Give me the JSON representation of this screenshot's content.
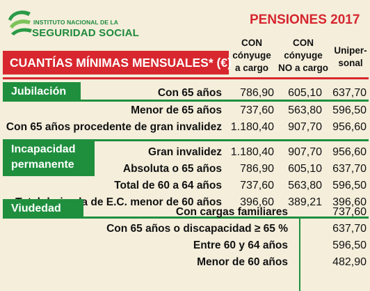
{
  "institution": {
    "top_line": "INSTITUTO NACIONAL DE LA",
    "name": "SEGURIDAD SOCIAL",
    "logo_icon": "seguridad-social-logo-icon"
  },
  "title": "PENSIONES 2017",
  "banner": "CUANTÍAS MÍNIMAS MENSUALES* (€)",
  "columns": [
    {
      "lines": [
        "CON",
        "cónyuge",
        "a cargo"
      ]
    },
    {
      "lines": [
        "CON",
        "cónyuge",
        "NO a cargo"
      ]
    },
    {
      "lines": [
        "Unipersonal"
      ],
      "display": [
        "Uniper-",
        "sonal"
      ]
    }
  ],
  "sections": {
    "jubilacion": {
      "label": "Jubilación",
      "rows": [
        {
          "label": "Con 65 años",
          "values": [
            "786,90",
            "605,10",
            "637,70"
          ]
        },
        {
          "label": "Menor de 65 años",
          "values": [
            "737,60",
            "563,80",
            "596,50"
          ]
        },
        {
          "label": "Con 65 años procedente de gran invalidez",
          "values": [
            "1.180,40",
            "907,70",
            "956,60"
          ]
        }
      ]
    },
    "incapacidad": {
      "label_lines": [
        "Incapacidad",
        "permanente"
      ],
      "rows": [
        {
          "label": "Gran invalidez",
          "values": [
            "1.180,40",
            "907,70",
            "956,60"
          ]
        },
        {
          "label": "Absoluta o 65 años",
          "values": [
            "786,90",
            "605,10",
            "637,70"
          ]
        },
        {
          "label": "Total de 60 a 64 años",
          "values": [
            "737,60",
            "563,80",
            "596,50"
          ]
        },
        {
          "label": "Total derivada de E.C. menor de 60 años",
          "values": [
            "396,60",
            "389,21",
            "396,60"
          ]
        }
      ]
    },
    "viudedad": {
      "label": "Viudedad",
      "rows": [
        {
          "label": "Con cargas familiares",
          "value": "737,60"
        },
        {
          "label": "Con 65 años o discapacidad ≥ 65 %",
          "value": "637,70"
        },
        {
          "label": "Entre 60 y 64 años",
          "value": "596,50"
        },
        {
          "label": "Menor de 60 años",
          "value": "482,90"
        }
      ]
    }
  },
  "colors": {
    "red": "#d8272e",
    "green": "#1f8f3e",
    "background": "#f4eedb"
  }
}
